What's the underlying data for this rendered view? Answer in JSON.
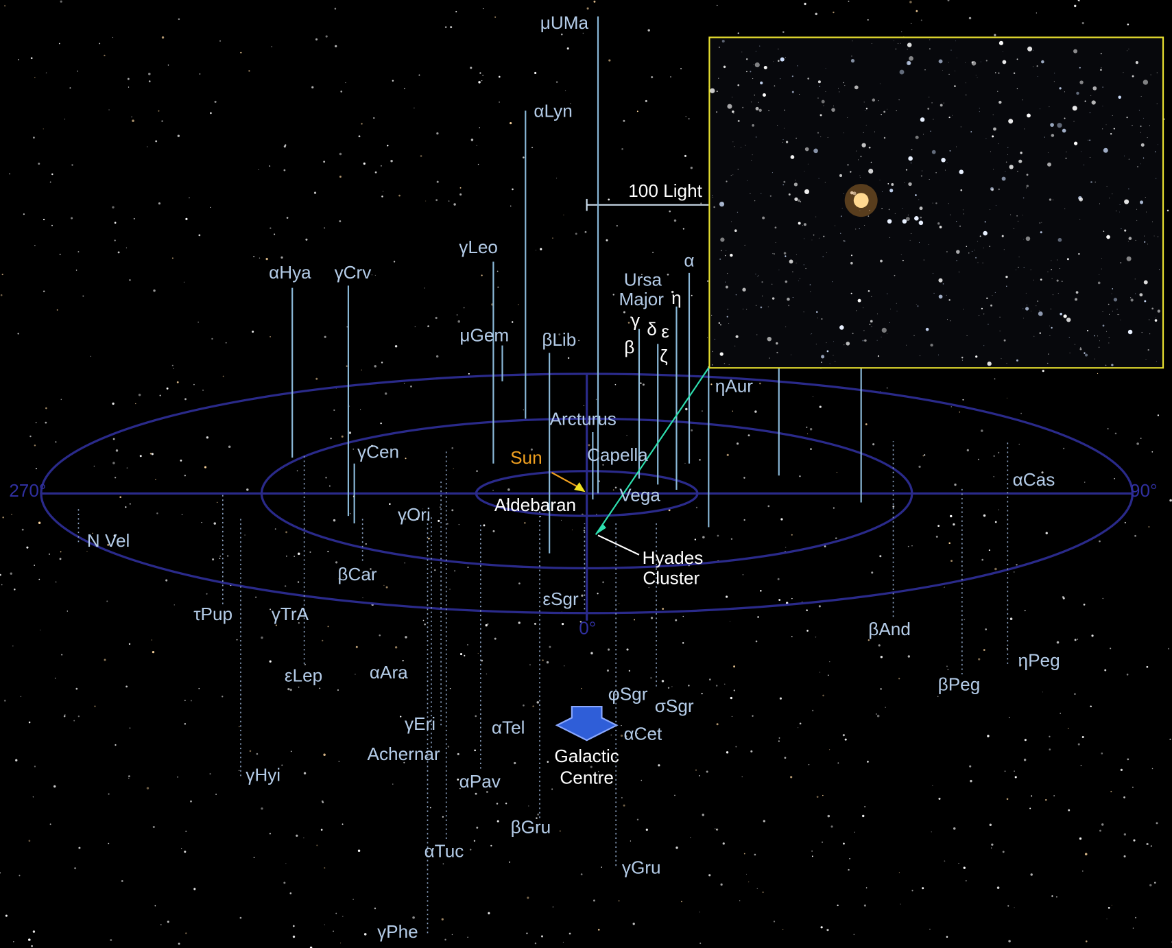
{
  "labels": [
    "μUMa",
    "αLyn",
    "100 Light",
    "γLeo",
    "αHya",
    "γCrv",
    "μGem",
    "βLib",
    "Ursa",
    "Major",
    "α",
    "η",
    "γ",
    "δ",
    "ε",
    "β",
    "ζ",
    "ηAur",
    "Arcturus",
    "Sun",
    "Capella",
    "γCen",
    "Vega",
    "Aldebaran",
    "270°",
    "90°",
    "0°",
    "αCas",
    "N Vel",
    "γOri",
    "Hyades",
    "Cluster",
    "βCar",
    "εSgr",
    "τPup",
    "γTrA",
    "βAnd",
    "ηPeg",
    "βPeg",
    "εLep",
    "αAra",
    "φSgr",
    "σSgr",
    "γEri",
    "αTel",
    "αCet",
    "Galactic",
    "Centre",
    "Achernar",
    "αPav",
    "γHyi",
    "βGru",
    "αTuc",
    "γGru",
    "γPhe"
  ]
}
